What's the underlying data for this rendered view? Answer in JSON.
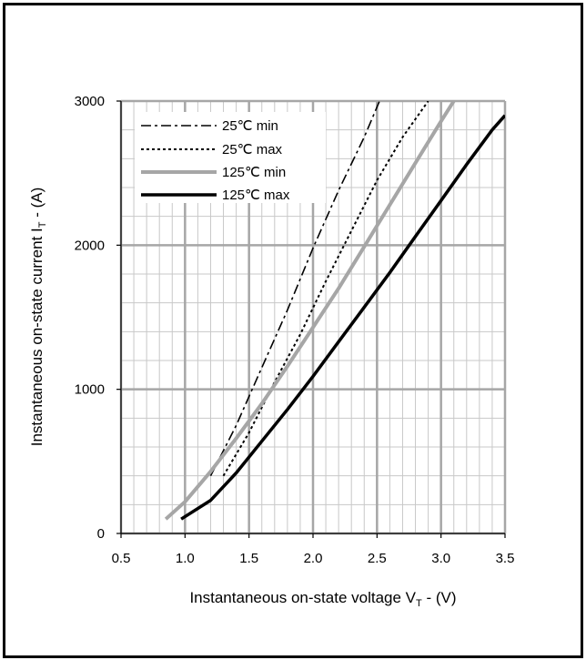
{
  "chart_data": {
    "type": "line",
    "title": "",
    "xlabel": "Instantaneous on-state voltage V",
    "xlabel_sub": "T",
    "xlabel_unit": " -  (V)",
    "ylabel": "Instantaneous on-state current I",
    "ylabel_sub": "T",
    "ylabel_unit": " -  (A)",
    "xlim": [
      0.5,
      3.5
    ],
    "ylim": [
      0,
      3000
    ],
    "x_ticks": [
      "0.5",
      "1.0",
      "1.5",
      "2.0",
      "2.5",
      "3.0",
      "3.5"
    ],
    "y_ticks": [
      "0",
      "1000",
      "2000",
      "3000"
    ],
    "grid": true,
    "legend_position": "top-left",
    "series": [
      {
        "name": "25℃ min",
        "style": "dashdot",
        "color": "#000000",
        "points": [
          [
            1.2,
            400
          ],
          [
            1.4,
            750
          ],
          [
            1.6,
            1150
          ],
          [
            1.8,
            1550
          ],
          [
            2.0,
            1980
          ],
          [
            2.2,
            2380
          ],
          [
            2.4,
            2750
          ],
          [
            2.52,
            3000
          ]
        ]
      },
      {
        "name": "25℃ max",
        "style": "dotted",
        "color": "#000000",
        "points": [
          [
            1.3,
            400
          ],
          [
            1.5,
            700
          ],
          [
            1.7,
            1050
          ],
          [
            1.9,
            1380
          ],
          [
            2.1,
            1750
          ],
          [
            2.3,
            2100
          ],
          [
            2.5,
            2450
          ],
          [
            2.7,
            2750
          ],
          [
            2.9,
            3000
          ]
        ]
      },
      {
        "name": "125℃ min",
        "style": "solid",
        "color": "#a6a6a6",
        "points": [
          [
            0.85,
            100
          ],
          [
            1.0,
            220
          ],
          [
            1.2,
            430
          ],
          [
            1.4,
            660
          ],
          [
            1.6,
            900
          ],
          [
            1.8,
            1160
          ],
          [
            2.0,
            1430
          ],
          [
            2.2,
            1700
          ],
          [
            2.4,
            1990
          ],
          [
            2.6,
            2280
          ],
          [
            2.8,
            2570
          ],
          [
            3.0,
            2860
          ],
          [
            3.1,
            3000
          ]
        ]
      },
      {
        "name": "125℃ max",
        "style": "solid",
        "color": "#000000",
        "points": [
          [
            0.97,
            100
          ],
          [
            1.2,
            230
          ],
          [
            1.4,
            420
          ],
          [
            1.6,
            640
          ],
          [
            1.8,
            860
          ],
          [
            2.0,
            1090
          ],
          [
            2.2,
            1330
          ],
          [
            2.4,
            1570
          ],
          [
            2.6,
            1810
          ],
          [
            2.8,
            2060
          ],
          [
            3.0,
            2310
          ],
          [
            3.2,
            2560
          ],
          [
            3.4,
            2800
          ],
          [
            3.5,
            2900
          ]
        ]
      }
    ]
  }
}
